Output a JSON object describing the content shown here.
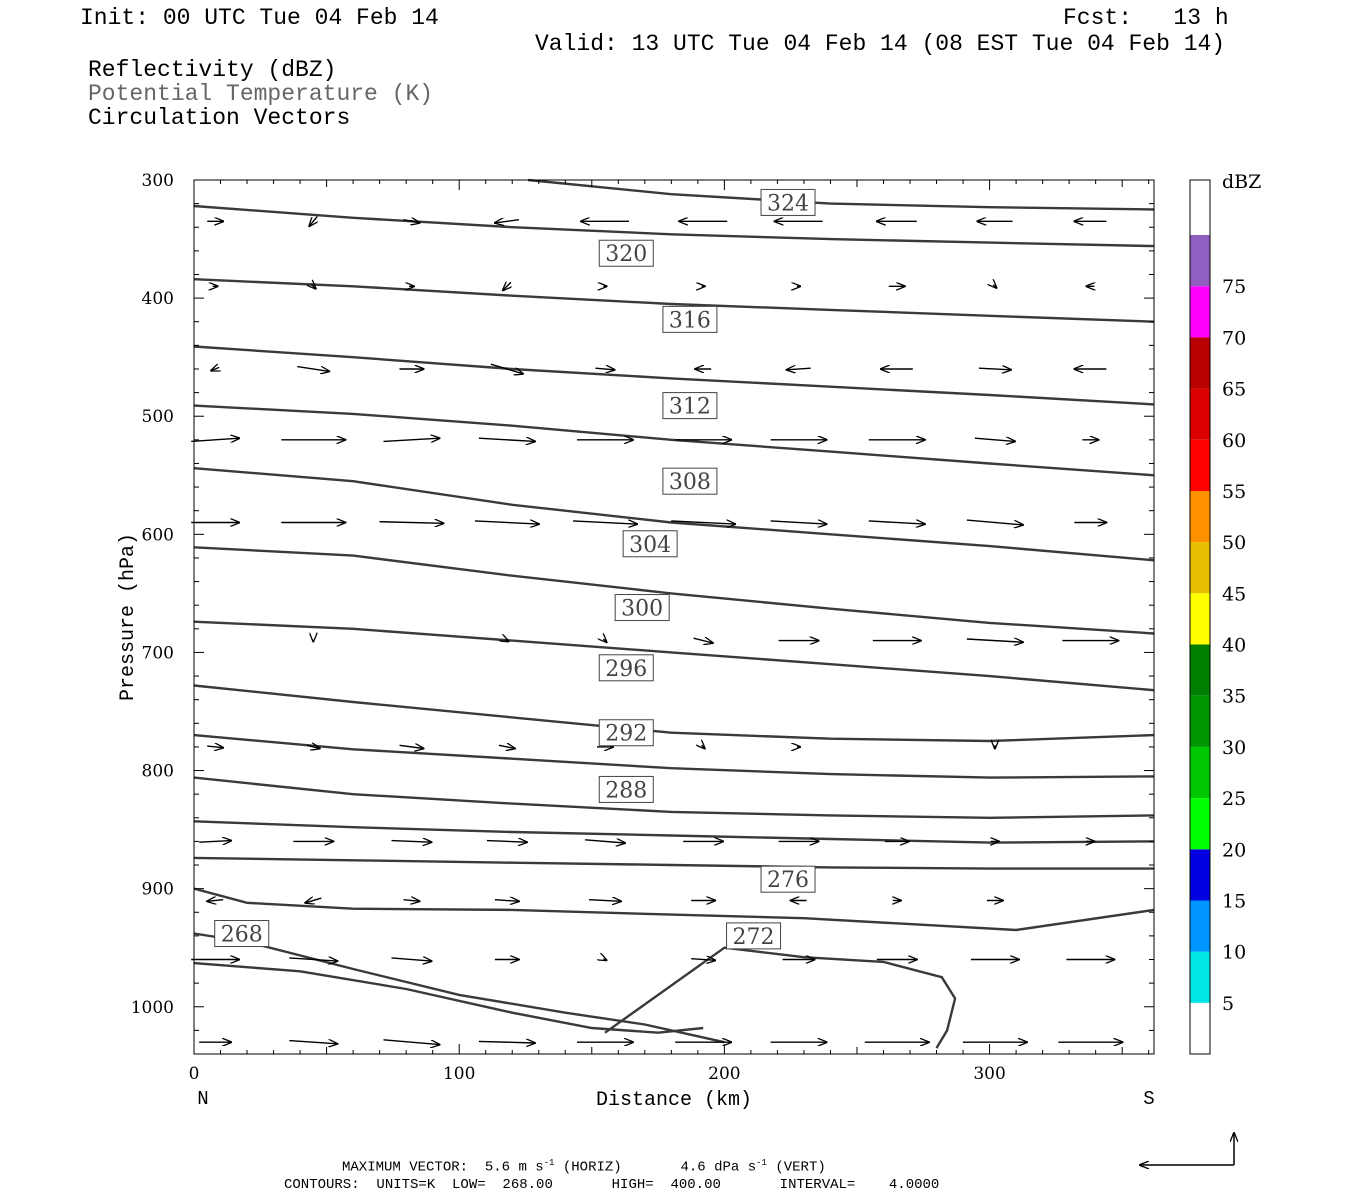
{
  "header": {
    "init": "Init: 00 UTC Tue 04 Feb 14",
    "fcst": "Fcst:   13 h",
    "valid": "Valid: 13 UTC Tue 04 Feb 14 (08 EST Tue 04 Feb 14)",
    "field1": "Reflectivity (dBZ)",
    "field2": "Potential Temperature (K)",
    "field3": "Circulation Vectors"
  },
  "chart_data": {
    "type": "cross-section",
    "xlabel": "Distance (km)",
    "ylabel": "Pressure (hPa)",
    "xlim": [
      0,
      362
    ],
    "ylim": [
      300,
      1040
    ],
    "x_ticks": [
      "0",
      "100",
      "200",
      "300"
    ],
    "y_ticks": [
      "300",
      "400",
      "500",
      "600",
      "700",
      "800",
      "900",
      "1000"
    ],
    "x_end_labels": {
      "left": "N",
      "right": "S"
    },
    "theta_contours": [
      {
        "level": 268,
        "label": "268",
        "x": [
          0,
          20,
          60,
          100,
          140,
          170,
          190,
          200
        ],
        "p": [
          938,
          945,
          968,
          990,
          1005,
          1015,
          1025,
          1030
        ]
      },
      {
        "level": 272,
        "label": "272",
        "x": [
          0,
          40,
          80,
          120,
          150,
          175,
          192
        ],
        "p": [
          963,
          970,
          985,
          1005,
          1018,
          1022,
          1018
        ]
      },
      {
        "level": 272,
        "label": "272",
        "x": [
          155,
          200,
          230,
          260,
          282,
          287,
          284,
          280
        ],
        "p": [
          1022,
          950,
          958,
          962,
          975,
          993,
          1020,
          1035
        ]
      },
      {
        "level": 276,
        "label": "276",
        "x": [
          0,
          20,
          60,
          120,
          180,
          230,
          270,
          310,
          362
        ],
        "p": [
          900,
          912,
          917,
          918,
          922,
          925,
          930,
          935,
          918
        ]
      },
      {
        "level": null,
        "label": "",
        "x": [
          0,
          60,
          120,
          180,
          240,
          300,
          362
        ],
        "p": [
          874,
          876,
          878,
          880,
          882,
          883,
          883
        ]
      },
      {
        "level": null,
        "label": "",
        "x": [
          0,
          60,
          120,
          180,
          240,
          300,
          362
        ],
        "p": [
          843,
          848,
          852,
          855,
          858,
          861,
          860
        ]
      },
      {
        "level": 288,
        "label": "288",
        "x": [
          0,
          60,
          120,
          180,
          240,
          300,
          362
        ],
        "p": [
          806,
          820,
          828,
          835,
          838,
          840,
          838
        ]
      },
      {
        "level": 292,
        "label": "292",
        "x": [
          0,
          60,
          120,
          180,
          240,
          300,
          362
        ],
        "p": [
          770,
          782,
          790,
          798,
          803,
          806,
          805
        ]
      },
      {
        "level": 296,
        "label": "296",
        "x": [
          0,
          60,
          120,
          180,
          240,
          300,
          362
        ],
        "p": [
          728,
          742,
          755,
          768,
          773,
          775,
          770
        ]
      },
      {
        "level": 300,
        "label": "300",
        "x": [
          0,
          60,
          120,
          180,
          240,
          300,
          362
        ],
        "p": [
          674,
          680,
          690,
          700,
          710,
          720,
          732
        ]
      },
      {
        "level": 304,
        "label": "304",
        "x": [
          0,
          60,
          120,
          180,
          240,
          300,
          362
        ],
        "p": [
          611,
          618,
          635,
          650,
          663,
          675,
          684
        ]
      },
      {
        "level": 308,
        "label": "308",
        "x": [
          0,
          60,
          120,
          180,
          240,
          300,
          362
        ],
        "p": [
          544,
          555,
          575,
          590,
          600,
          610,
          622
        ]
      },
      {
        "level": 312,
        "label": "312",
        "x": [
          0,
          60,
          120,
          180,
          240,
          300,
          362
        ],
        "p": [
          491,
          498,
          508,
          520,
          530,
          540,
          550
        ]
      },
      {
        "level": 316,
        "label": "316",
        "x": [
          0,
          60,
          120,
          180,
          240,
          300,
          362
        ],
        "p": [
          441,
          450,
          460,
          468,
          475,
          482,
          490
        ]
      },
      {
        "level": 320,
        "label": "320",
        "x": [
          0,
          60,
          120,
          180,
          240,
          300,
          362
        ],
        "p": [
          384,
          390,
          398,
          405,
          410,
          415,
          420
        ]
      },
      {
        "level": null,
        "label": "",
        "x": [
          0,
          60,
          120,
          180,
          240,
          300,
          362
        ],
        "p": [
          322,
          332,
          340,
          346,
          350,
          353,
          356
        ]
      },
      {
        "level": 324,
        "label": "324",
        "x": [
          126,
          180,
          240,
          300,
          362
        ],
        "p": [
          300,
          312,
          320,
          323,
          325
        ]
      }
    ],
    "contour_labels": [
      {
        "text": "324",
        "x": 224,
        "p": 319
      },
      {
        "text": "320",
        "x": 163,
        "p": 362
      },
      {
        "text": "316",
        "x": 187,
        "p": 418
      },
      {
        "text": "312",
        "x": 187,
        "p": 491
      },
      {
        "text": "308",
        "x": 187,
        "p": 555
      },
      {
        "text": "304",
        "x": 172,
        "p": 608
      },
      {
        "text": "300",
        "x": 169,
        "p": 662
      },
      {
        "text": "296",
        "x": 163,
        "p": 713
      },
      {
        "text": "292",
        "x": 163,
        "p": 768
      },
      {
        "text": "288",
        "x": 163,
        "p": 816
      },
      {
        "text": "276",
        "x": 224,
        "p": 892
      },
      {
        "text": "272",
        "x": 211,
        "p": 940
      },
      {
        "text": "268",
        "x": 18,
        "p": 938
      }
    ],
    "vector_rows": [
      {
        "p": 335,
        "u": [
          1,
          -0.5,
          1,
          -1.5,
          -3,
          -3,
          -3,
          -2.5,
          -2.2,
          -2
        ],
        "w": [
          0,
          0.6,
          0.2,
          0.2,
          0,
          0,
          0,
          0,
          0,
          0
        ]
      },
      {
        "p": 390,
        "u": [
          0.3,
          0.3,
          0.3,
          -0.5,
          0.2,
          0.2,
          0.2,
          1,
          0.2,
          -0.5
        ],
        "w": [
          0,
          0.3,
          0,
          0.5,
          0,
          0,
          0,
          0,
          0.2,
          0
        ]
      },
      {
        "p": 460,
        "u": [
          -0.5,
          2,
          1.5,
          2,
          1.2,
          -1,
          -1.5,
          -2,
          2,
          -2
        ],
        "w": [
          0.2,
          0.3,
          0,
          0.6,
          0.1,
          0,
          0.1,
          0,
          0.1,
          0
        ]
      },
      {
        "p": 520,
        "u": [
          3,
          4,
          3.5,
          3.5,
          3.5,
          3.5,
          3.5,
          3.5,
          2.5,
          1
        ],
        "w": [
          -0.2,
          0,
          -0.2,
          0.2,
          0,
          0,
          0,
          0,
          0.2,
          0
        ]
      },
      {
        "p": 590,
        "u": [
          3,
          4,
          4,
          4,
          4,
          4,
          3.5,
          3.5,
          3.5,
          2
        ],
        "w": [
          0,
          0,
          0.1,
          0.2,
          0.2,
          0.2,
          0.2,
          0.2,
          0.3,
          0
        ]
      },
      {
        "p": 690,
        "u": [
          0,
          0,
          0,
          0.2,
          0.2,
          1.2,
          2.5,
          3,
          3.5,
          3.5
        ],
        "w": [
          0,
          0.1,
          0,
          0.1,
          0.2,
          0.3,
          0,
          0,
          0.2,
          0
        ]
      },
      {
        "p": 780,
        "u": [
          1,
          0.8,
          1.5,
          1,
          1,
          0.2,
          0.2,
          0,
          0,
          0
        ],
        "w": [
          0.1,
          0.2,
          0.2,
          0.2,
          0,
          0.2,
          0,
          0,
          0.2,
          0
        ]
      },
      {
        "p": 860,
        "u": [
          2,
          2.5,
          2.5,
          2.5,
          2.5,
          2.5,
          2.5,
          1.5,
          0.5,
          0.5
        ],
        "w": [
          -0.1,
          0,
          0.1,
          0.1,
          0.2,
          0,
          0,
          0,
          0,
          0
        ]
      },
      {
        "p": 910,
        "u": [
          -1,
          -1,
          1,
          1.5,
          2,
          1.5,
          -1,
          0.5,
          1,
          0
        ],
        "w": [
          0.1,
          0.3,
          0.1,
          0.1,
          0.1,
          0,
          0,
          0,
          0,
          0
        ]
      },
      {
        "p": 960,
        "u": [
          3,
          3,
          2.5,
          1.5,
          0.2,
          1.5,
          2,
          2.5,
          3,
          3
        ],
        "w": [
          0,
          0.2,
          0.2,
          0,
          0.1,
          0.1,
          0,
          0,
          0,
          0
        ]
      },
      {
        "p": 1030,
        "u": [
          2,
          3,
          3.5,
          3.5,
          3.5,
          3.5,
          3.5,
          4,
          4,
          4
        ],
        "w": [
          0,
          0.2,
          0.3,
          0.1,
          0,
          0,
          0,
          0,
          0,
          0
        ]
      }
    ],
    "legend": {
      "title": "dBZ",
      "levels": [
        "5",
        "10",
        "15",
        "20",
        "25",
        "30",
        "35",
        "40",
        "45",
        "50",
        "55",
        "60",
        "65",
        "70",
        "75"
      ],
      "colors": [
        "#ffffff",
        "#00e6e6",
        "#0096ff",
        "#0000e0",
        "#00ff00",
        "#00c800",
        "#009600",
        "#008000",
        "#ffff00",
        "#e6c000",
        "#ff9000",
        "#ff0000",
        "#dd0000",
        "#bb0000",
        "#ff00ff",
        "#9060c0",
        "#ffffff"
      ]
    }
  },
  "footer": {
    "line1_a": "MAXIMUM VECTOR:",
    "line1_b": "5.6 m s",
    "line1_c": "(HORIZ)",
    "line1_d": "4.6 dPa s",
    "line1_e": "(VERT)",
    "exp": "-1",
    "line2": "CONTOURS:  UNITS=K  LOW=  268.00       HIGH=  400.00       INTERVAL=    4.0000"
  }
}
